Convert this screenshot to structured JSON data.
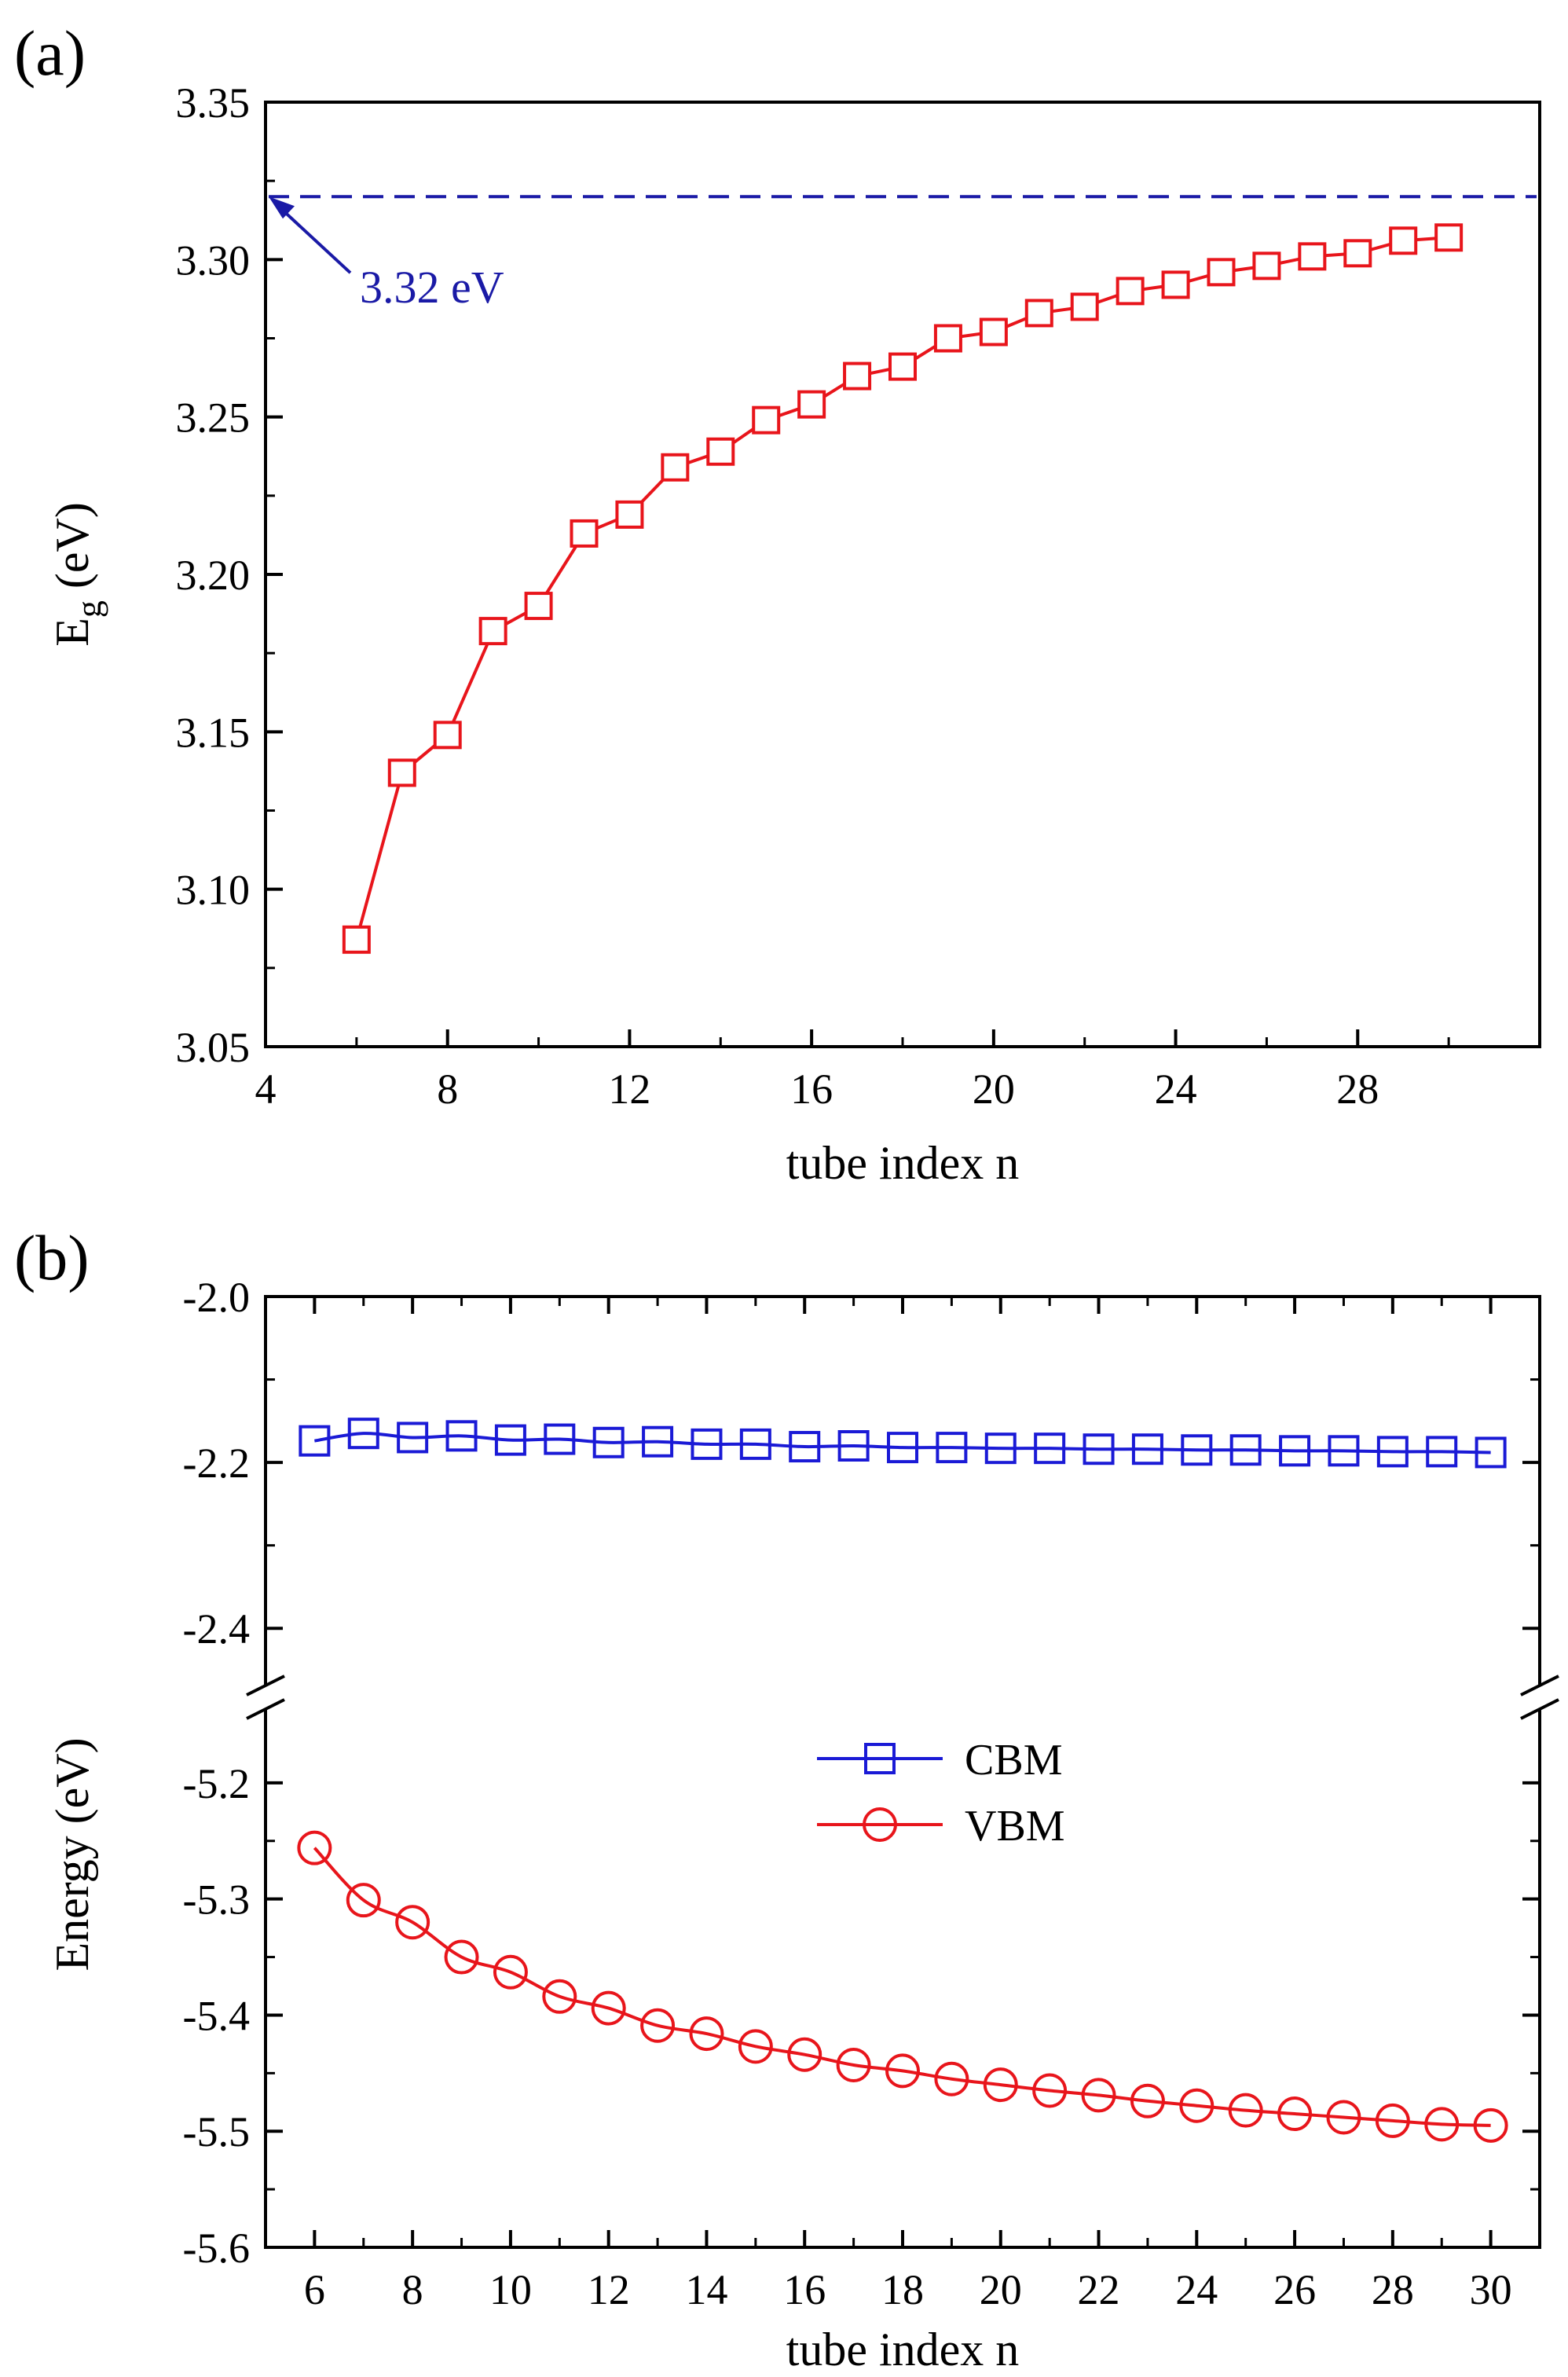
{
  "panels": [
    {
      "label": "(a)",
      "chart_data": {
        "type": "line",
        "title": "",
        "xlabel": "tube index n",
        "ylabel": "E",
        "ylabel_sub": "g",
        "ylabel_suffix": " (eV)",
        "xlim": [
          4,
          32
        ],
        "ylim": [
          3.05,
          3.35
        ],
        "xticks": [
          4,
          8,
          12,
          16,
          20,
          24,
          28
        ],
        "xtick_labels": [
          "4",
          "8",
          "12",
          "16",
          "20",
          "24",
          "28"
        ],
        "yticks": [
          3.05,
          3.1,
          3.15,
          3.2,
          3.25,
          3.3,
          3.35
        ],
        "ytick_labels": [
          "3.05",
          "3.10",
          "3.15",
          "3.20",
          "3.25",
          "3.30",
          "3.35"
        ],
        "reference_line": {
          "y": 3.32,
          "label": "3.32 eV",
          "color": "#1a1aa6",
          "style": "dashed"
        },
        "series": [
          {
            "marker": "square",
            "color": "#e8151b",
            "x": [
              6,
              7,
              8,
              9,
              10,
              11,
              12,
              13,
              14,
              15,
              16,
              17,
              18,
              19,
              20,
              21,
              22,
              23,
              24,
              25,
              26,
              27,
              28,
              29,
              30
            ],
            "y": [
              3.084,
              3.137,
              3.149,
              3.182,
              3.19,
              3.213,
              3.219,
              3.234,
              3.239,
              3.249,
              3.254,
              3.263,
              3.266,
              3.275,
              3.277,
              3.283,
              3.285,
              3.29,
              3.292,
              3.296,
              3.298,
              3.301,
              3.302,
              3.306,
              3.307
            ]
          }
        ]
      }
    },
    {
      "label": "(b)",
      "chart_data": {
        "type": "line",
        "title": "",
        "xlabel": "tube index n",
        "ylabel": "Energy (eV)",
        "xlim": [
          5,
          31
        ],
        "ylim_upper": [
          -2.45,
          -2.0
        ],
        "ylim_lower": [
          -5.6,
          -5.15
        ],
        "broken_axis": true,
        "xticks": [
          6,
          8,
          10,
          12,
          14,
          16,
          18,
          20,
          22,
          24,
          26,
          28,
          30
        ],
        "xtick_labels": [
          "6",
          "8",
          "10",
          "12",
          "14",
          "16",
          "18",
          "20",
          "22",
          "24",
          "26",
          "28",
          "30"
        ],
        "yticks_upper": [
          -2.0,
          -2.2,
          -2.4
        ],
        "ytick_labels_upper": [
          "-2.0",
          "-2.2",
          "-2.4"
        ],
        "yticks_lower": [
          -5.2,
          -5.3,
          -5.4,
          -5.5,
          -5.6
        ],
        "ytick_labels_lower": [
          "-5.2",
          "-5.3",
          "-5.4",
          "-5.5",
          "-5.6"
        ],
        "legend_position": "center",
        "series": [
          {
            "name": "CBM",
            "marker": "square",
            "color": "#1a1ad6",
            "x": [
              6,
              7,
              8,
              9,
              10,
              11,
              12,
              13,
              14,
              15,
              16,
              17,
              18,
              19,
              20,
              21,
              22,
              23,
              24,
              25,
              26,
              27,
              28,
              29,
              30
            ],
            "y": [
              -2.174,
              -2.165,
              -2.17,
              -2.168,
              -2.173,
              -2.172,
              -2.176,
              -2.175,
              -2.178,
              -2.178,
              -2.181,
              -2.18,
              -2.182,
              -2.182,
              -2.183,
              -2.183,
              -2.184,
              -2.184,
              -2.185,
              -2.185,
              -2.186,
              -2.186,
              -2.187,
              -2.187,
              -2.188
            ]
          },
          {
            "name": "VBM",
            "marker": "circle",
            "color": "#e8151b",
            "x": [
              6,
              7,
              8,
              9,
              10,
              11,
              12,
              13,
              14,
              15,
              16,
              17,
              18,
              19,
              20,
              21,
              22,
              23,
              24,
              25,
              26,
              27,
              28,
              29,
              30
            ],
            "y": [
              -5.256,
              -5.301,
              -5.32,
              -5.35,
              -5.363,
              -5.384,
              -5.394,
              -5.409,
              -5.416,
              -5.427,
              -5.434,
              -5.443,
              -5.448,
              -5.455,
              -5.46,
              -5.465,
              -5.469,
              -5.474,
              -5.478,
              -5.482,
              -5.485,
              -5.488,
              -5.491,
              -5.494,
              -5.495
            ]
          }
        ]
      }
    }
  ]
}
